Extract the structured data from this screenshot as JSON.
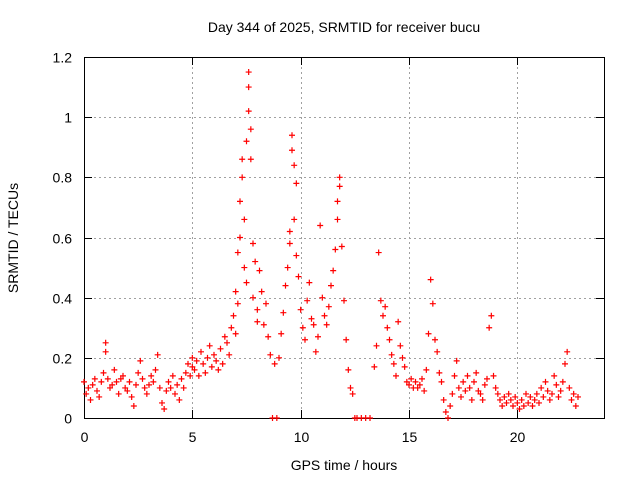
{
  "chart_data": {
    "type": "scatter",
    "title": "Day 344 of 2025, SRMTID for receiver bucu",
    "xlabel": "GPS time / hours",
    "ylabel": "SRMTID / TECUs",
    "xlim": [
      0,
      24
    ],
    "ylim": [
      0,
      1.2
    ],
    "xticks": [
      0,
      5,
      10,
      15,
      20
    ],
    "xtick_labels": [
      "0",
      "5",
      "10",
      "15",
      "20"
    ],
    "yticks": [
      0,
      0.2,
      0.4,
      0.6,
      0.8,
      1.0,
      1.2
    ],
    "ytick_labels": [
      "0",
      "0.2",
      "0.4",
      "0.6",
      "0.8",
      "1",
      "1.2"
    ],
    "grid": true,
    "marker": "+",
    "color": "#ff0000",
    "series": [
      {
        "name": "SRMTID",
        "points": [
          [
            0.0,
            0.12
          ],
          [
            0.1,
            0.08
          ],
          [
            0.2,
            0.1
          ],
          [
            0.3,
            0.06
          ],
          [
            0.4,
            0.11
          ],
          [
            0.5,
            0.13
          ],
          [
            0.6,
            0.09
          ],
          [
            0.7,
            0.07
          ],
          [
            0.8,
            0.12
          ],
          [
            0.9,
            0.15
          ],
          [
            1.0,
            0.22
          ],
          [
            1.0,
            0.25
          ],
          [
            1.1,
            0.13
          ],
          [
            1.2,
            0.1
          ],
          [
            1.3,
            0.11
          ],
          [
            1.4,
            0.16
          ],
          [
            1.5,
            0.12
          ],
          [
            1.6,
            0.08
          ],
          [
            1.7,
            0.13
          ],
          [
            1.8,
            0.14
          ],
          [
            1.9,
            0.1
          ],
          [
            2.0,
            0.09
          ],
          [
            2.1,
            0.12
          ],
          [
            2.2,
            0.07
          ],
          [
            2.3,
            0.04
          ],
          [
            2.4,
            0.11
          ],
          [
            2.5,
            0.15
          ],
          [
            2.6,
            0.19
          ],
          [
            2.7,
            0.13
          ],
          [
            2.8,
            0.1
          ],
          [
            2.9,
            0.08
          ],
          [
            3.0,
            0.11
          ],
          [
            3.1,
            0.14
          ],
          [
            3.2,
            0.12
          ],
          [
            3.3,
            0.16
          ],
          [
            3.4,
            0.21
          ],
          [
            3.5,
            0.1
          ],
          [
            3.6,
            0.05
          ],
          [
            3.7,
            0.03
          ],
          [
            3.8,
            0.09
          ],
          [
            3.9,
            0.12
          ],
          [
            4.0,
            0.1
          ],
          [
            4.1,
            0.14
          ],
          [
            4.2,
            0.08
          ],
          [
            4.3,
            0.11
          ],
          [
            4.4,
            0.06
          ],
          [
            4.5,
            0.13
          ],
          [
            4.6,
            0.1
          ],
          [
            4.7,
            0.15
          ],
          [
            4.8,
            0.18
          ],
          [
            4.9,
            0.14
          ],
          [
            5.0,
            0.17
          ],
          [
            5.0,
            0.2
          ],
          [
            5.1,
            0.16
          ],
          [
            5.2,
            0.19
          ],
          [
            5.3,
            0.14
          ],
          [
            5.4,
            0.22
          ],
          [
            5.5,
            0.18
          ],
          [
            5.6,
            0.15
          ],
          [
            5.7,
            0.2
          ],
          [
            5.8,
            0.24
          ],
          [
            5.9,
            0.17
          ],
          [
            6.0,
            0.21
          ],
          [
            6.1,
            0.19
          ],
          [
            6.2,
            0.16
          ],
          [
            6.3,
            0.23
          ],
          [
            6.4,
            0.18
          ],
          [
            6.5,
            0.27
          ],
          [
            6.6,
            0.25
          ],
          [
            6.7,
            0.21
          ],
          [
            6.8,
            0.3
          ],
          [
            6.9,
            0.34
          ],
          [
            7.0,
            0.28
          ],
          [
            7.0,
            0.42
          ],
          [
            7.1,
            0.55
          ],
          [
            7.1,
            0.38
          ],
          [
            7.2,
            0.72
          ],
          [
            7.2,
            0.6
          ],
          [
            7.3,
            0.86
          ],
          [
            7.3,
            0.8
          ],
          [
            7.4,
            0.66
          ],
          [
            7.4,
            0.5
          ],
          [
            7.5,
            0.92
          ],
          [
            7.5,
            0.45
          ],
          [
            7.6,
            1.15
          ],
          [
            7.6,
            1.1
          ],
          [
            7.6,
            1.02
          ],
          [
            7.7,
            0.96
          ],
          [
            7.7,
            0.86
          ],
          [
            7.8,
            0.58
          ],
          [
            7.8,
            0.4
          ],
          [
            7.9,
            0.52
          ],
          [
            8.0,
            0.32
          ],
          [
            8.0,
            0.36
          ],
          [
            8.1,
            0.49
          ],
          [
            8.2,
            0.42
          ],
          [
            8.3,
            0.31
          ],
          [
            8.4,
            0.38
          ],
          [
            8.5,
            0.27
          ],
          [
            8.6,
            0.21
          ],
          [
            8.7,
            0.0
          ],
          [
            8.8,
            0.18
          ],
          [
            8.9,
            0.0
          ],
          [
            9.0,
            0.2
          ],
          [
            9.1,
            0.28
          ],
          [
            9.2,
            0.35
          ],
          [
            9.3,
            0.44
          ],
          [
            9.4,
            0.5
          ],
          [
            9.5,
            0.58
          ],
          [
            9.5,
            0.62
          ],
          [
            9.6,
            0.94
          ],
          [
            9.6,
            0.89
          ],
          [
            9.7,
            0.84
          ],
          [
            9.7,
            0.66
          ],
          [
            9.8,
            0.78
          ],
          [
            9.8,
            0.54
          ],
          [
            9.9,
            0.47
          ],
          [
            10.0,
            0.36
          ],
          [
            10.1,
            0.3
          ],
          [
            10.2,
            0.26
          ],
          [
            10.3,
            0.39
          ],
          [
            10.4,
            0.45
          ],
          [
            10.5,
            0.33
          ],
          [
            10.6,
            0.31
          ],
          [
            10.7,
            0.22
          ],
          [
            10.8,
            0.27
          ],
          [
            10.9,
            0.64
          ],
          [
            11.0,
            0.4
          ],
          [
            11.1,
            0.34
          ],
          [
            11.2,
            0.31
          ],
          [
            11.3,
            0.37
          ],
          [
            11.4,
            0.44
          ],
          [
            11.5,
            0.49
          ],
          [
            11.6,
            0.56
          ],
          [
            11.7,
            0.66
          ],
          [
            11.7,
            0.72
          ],
          [
            11.8,
            0.8
          ],
          [
            11.8,
            0.77
          ],
          [
            11.9,
            0.57
          ],
          [
            12.0,
            0.39
          ],
          [
            12.1,
            0.26
          ],
          [
            12.2,
            0.16
          ],
          [
            12.3,
            0.1
          ],
          [
            12.4,
            0.08
          ],
          [
            12.5,
            0.0
          ],
          [
            12.6,
            0.0
          ],
          [
            12.8,
            0.0
          ],
          [
            13.0,
            0.0
          ],
          [
            13.2,
            0.0
          ],
          [
            13.4,
            0.17
          ],
          [
            13.5,
            0.24
          ],
          [
            13.6,
            0.55
          ],
          [
            13.7,
            0.39
          ],
          [
            13.8,
            0.34
          ],
          [
            13.9,
            0.37
          ],
          [
            14.0,
            0.3
          ],
          [
            14.1,
            0.26
          ],
          [
            14.2,
            0.21
          ],
          [
            14.3,
            0.18
          ],
          [
            14.4,
            0.14
          ],
          [
            14.5,
            0.32
          ],
          [
            14.6,
            0.24
          ],
          [
            14.7,
            0.2
          ],
          [
            14.8,
            0.17
          ],
          [
            14.9,
            0.12
          ],
          [
            15.0,
            0.11
          ],
          [
            15.1,
            0.13
          ],
          [
            15.2,
            0.1
          ],
          [
            15.3,
            0.12
          ],
          [
            15.4,
            0.1
          ],
          [
            15.5,
            0.11
          ],
          [
            15.6,
            0.13
          ],
          [
            15.7,
            0.09
          ],
          [
            15.8,
            0.16
          ],
          [
            15.9,
            0.28
          ],
          [
            16.0,
            0.46
          ],
          [
            16.1,
            0.38
          ],
          [
            16.2,
            0.26
          ],
          [
            16.3,
            0.22
          ],
          [
            16.4,
            0.15
          ],
          [
            16.5,
            0.12
          ],
          [
            16.6,
            0.06
          ],
          [
            16.7,
            0.02
          ],
          [
            16.8,
            0.0
          ],
          [
            16.9,
            0.04
          ],
          [
            17.0,
            0.08
          ],
          [
            17.1,
            0.14
          ],
          [
            17.2,
            0.19
          ],
          [
            17.3,
            0.1
          ],
          [
            17.4,
            0.07
          ],
          [
            17.5,
            0.12
          ],
          [
            17.6,
            0.09
          ],
          [
            17.7,
            0.14
          ],
          [
            17.8,
            0.1
          ],
          [
            17.9,
            0.06
          ],
          [
            18.0,
            0.12
          ],
          [
            18.1,
            0.15
          ],
          [
            18.2,
            0.09
          ],
          [
            18.3,
            0.08
          ],
          [
            18.4,
            0.06
          ],
          [
            18.5,
            0.11
          ],
          [
            18.6,
            0.13
          ],
          [
            18.7,
            0.3
          ],
          [
            18.8,
            0.34
          ],
          [
            18.9,
            0.14
          ],
          [
            19.0,
            0.1
          ],
          [
            19.1,
            0.08
          ],
          [
            19.2,
            0.06
          ],
          [
            19.3,
            0.04
          ],
          [
            19.4,
            0.07
          ],
          [
            19.5,
            0.05
          ],
          [
            19.6,
            0.08
          ],
          [
            19.7,
            0.06
          ],
          [
            19.8,
            0.04
          ],
          [
            19.9,
            0.07
          ],
          [
            20.0,
            0.05
          ],
          [
            20.1,
            0.03
          ],
          [
            20.2,
            0.06
          ],
          [
            20.3,
            0.04
          ],
          [
            20.4,
            0.08
          ],
          [
            20.5,
            0.05
          ],
          [
            20.6,
            0.07
          ],
          [
            20.7,
            0.04
          ],
          [
            20.8,
            0.06
          ],
          [
            20.9,
            0.08
          ],
          [
            21.0,
            0.05
          ],
          [
            21.1,
            0.1
          ],
          [
            21.2,
            0.07
          ],
          [
            21.3,
            0.12
          ],
          [
            21.4,
            0.09
          ],
          [
            21.5,
            0.06
          ],
          [
            21.6,
            0.08
          ],
          [
            21.7,
            0.14
          ],
          [
            21.8,
            0.11
          ],
          [
            21.9,
            0.07
          ],
          [
            22.0,
            0.09
          ],
          [
            22.1,
            0.12
          ],
          [
            22.2,
            0.18
          ],
          [
            22.3,
            0.22
          ],
          [
            22.4,
            0.1
          ],
          [
            22.5,
            0.06
          ],
          [
            22.6,
            0.08
          ],
          [
            22.7,
            0.04
          ],
          [
            22.8,
            0.07
          ]
        ]
      }
    ]
  }
}
